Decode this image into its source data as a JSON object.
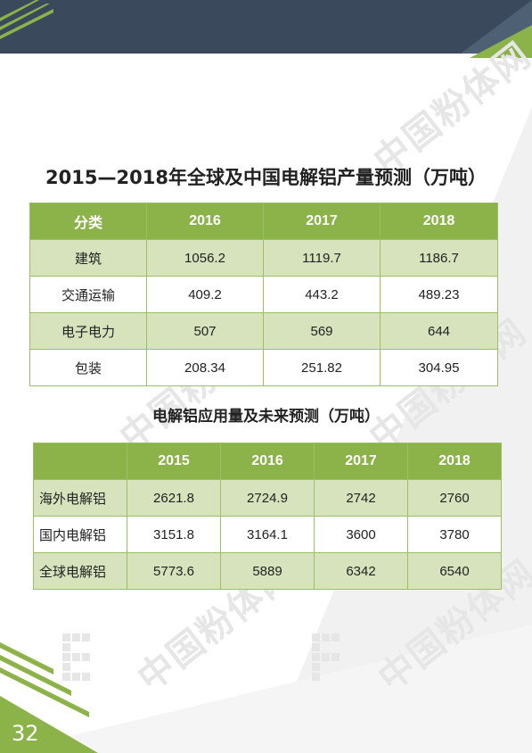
{
  "header": {
    "band_color": "#3a4a5c",
    "accent_color": "#8cb34a"
  },
  "watermark": {
    "text": "中国粉体网"
  },
  "table1": {
    "title": "2015—2018年全球及中国电解铝产量预测（万吨）",
    "headers": [
      "分类",
      "2016",
      "2017",
      "2018"
    ],
    "rows": [
      [
        "建筑",
        "1056.2",
        "1119.7",
        "1186.7"
      ],
      [
        "交通运输",
        "409.2",
        "443.2",
        "489.23"
      ],
      [
        "电子电力",
        "507",
        "569",
        "644"
      ],
      [
        "包装",
        "208.34",
        "251.82",
        "304.95"
      ]
    ]
  },
  "table2": {
    "title": "电解铝应用量及未来预测（万吨）",
    "headers": [
      "",
      "2015",
      "2016",
      "2017",
      "2018"
    ],
    "rows": [
      [
        "海外电解铝",
        "2621.8",
        "2724.9",
        "2742",
        "2760"
      ],
      [
        "国内电解铝",
        "3151.8",
        "3164.1",
        "3600",
        "3780"
      ],
      [
        "全球电解铝",
        "5773.6",
        "5889",
        "6342",
        "6540"
      ]
    ]
  },
  "footer": {
    "page_number": "32"
  }
}
